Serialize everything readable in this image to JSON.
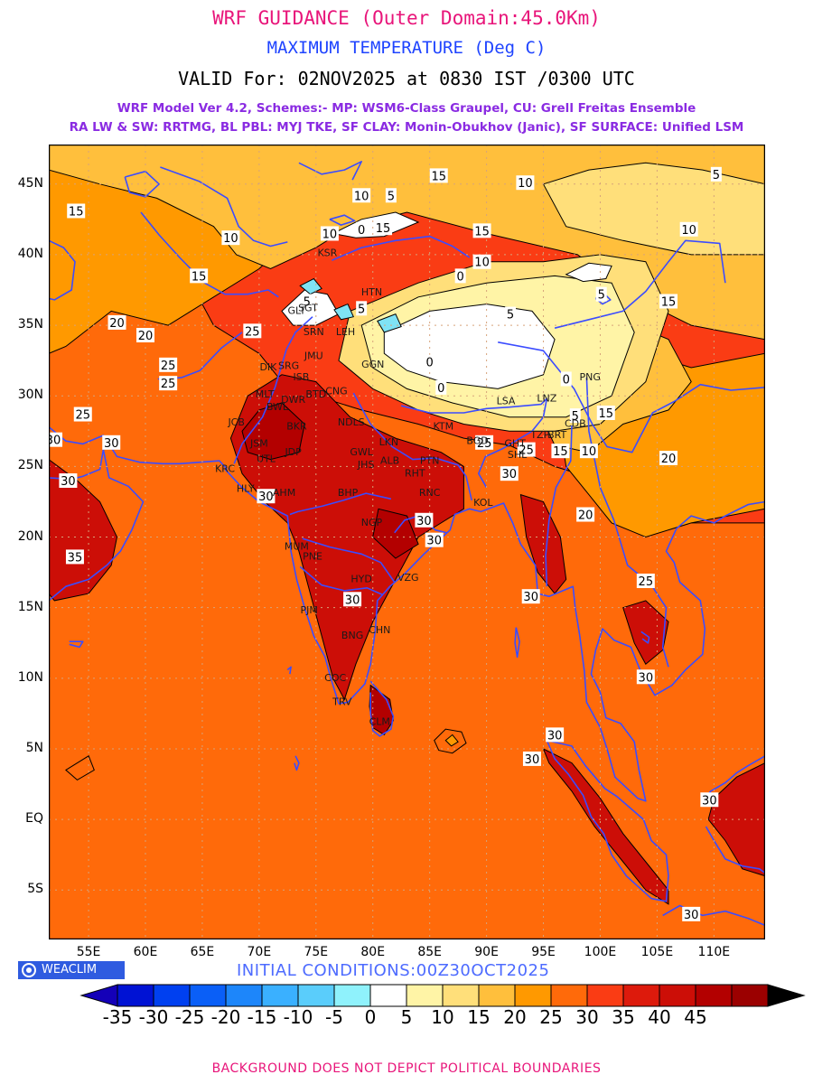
{
  "header": {
    "title": "WRF GUIDANCE (Outer Domain:45.0Km)",
    "parameter": "MAXIMUM TEMPERATURE (Deg C)",
    "valid": "VALID For: 02NOV2025 at 0830 IST /0300 UTC",
    "model_line1": "WRF Model Ver 4.2, Schemes:- MP: WSM6-Class Graupel, CU: Grell Freitas Ensemble",
    "model_line2": "RA LW & SW: RRTMG, BL PBL: MYJ TKE, SF CLAY: Monin-Obukhov (Janic), SF SURFACE: Unified LSM"
  },
  "map": {
    "lat_labels": [
      "45N",
      "40N",
      "35N",
      "30N",
      "25N",
      "20N",
      "15N",
      "10N",
      "5N",
      "EQ",
      "5S"
    ],
    "lon_labels": [
      "55E",
      "60E",
      "65E",
      "70E",
      "75E",
      "80E",
      "85E",
      "90E",
      "95E",
      "100E",
      "105E",
      "110E"
    ],
    "colors": {
      "ocean_base": "#fa3c14",
      "t25": "#ff6a0a",
      "t20": "#ff9900",
      "t15": "#ffbf3c",
      "t10": "#ffdf7a",
      "t5": "#fff4a6",
      "t0": "#ffffff",
      "tneg5": "#7fe3f5",
      "t35": "#cc0e07",
      "t40": "#b30000",
      "coast": "#3b4cff",
      "grid": "#d7a37a"
    },
    "contour_labels": [
      {
        "text": "15",
        "lon": 53.9,
        "lat": 43.1
      },
      {
        "text": "15",
        "lon": 85.8,
        "lat": 45.6
      },
      {
        "text": "10",
        "lon": 93.4,
        "lat": 45.1
      },
      {
        "text": "5",
        "lon": 110.2,
        "lat": 45.7
      },
      {
        "text": "10",
        "lon": 79.0,
        "lat": 44.2
      },
      {
        "text": "5",
        "lon": 81.6,
        "lat": 44.2
      },
      {
        "text": "10",
        "lon": 76.2,
        "lat": 41.5
      },
      {
        "text": "0",
        "lon": 79.0,
        "lat": 41.8
      },
      {
        "text": "15",
        "lon": 80.9,
        "lat": 41.9
      },
      {
        "text": "15",
        "lon": 89.6,
        "lat": 41.7
      },
      {
        "text": "10",
        "lon": 107.8,
        "lat": 41.8
      },
      {
        "text": "10",
        "lon": 67.5,
        "lat": 41.2
      },
      {
        "text": "10",
        "lon": 89.6,
        "lat": 39.5
      },
      {
        "text": "0",
        "lon": 87.7,
        "lat": 38.5
      },
      {
        "text": "15",
        "lon": 64.7,
        "lat": 38.5
      },
      {
        "text": "5",
        "lon": 100.1,
        "lat": 37.2
      },
      {
        "text": "15",
        "lon": 106.0,
        "lat": 36.7
      },
      {
        "text": "5",
        "lon": 74.2,
        "lat": 36.7
      },
      {
        "text": "5",
        "lon": 79.0,
        "lat": 36.2
      },
      {
        "text": "5",
        "lon": 92.1,
        "lat": 35.8
      },
      {
        "text": "20",
        "lon": 57.5,
        "lat": 35.2
      },
      {
        "text": "20",
        "lon": 60.0,
        "lat": 34.3
      },
      {
        "text": "25",
        "lon": 69.4,
        "lat": 34.6
      },
      {
        "text": "25",
        "lon": 62.0,
        "lat": 32.2
      },
      {
        "text": "25",
        "lon": 62.0,
        "lat": 30.9
      },
      {
        "text": "0",
        "lon": 85.0,
        "lat": 32.4
      },
      {
        "text": "0",
        "lon": 97.0,
        "lat": 31.2
      },
      {
        "text": "0",
        "lon": 86.0,
        "lat": 30.6
      },
      {
        "text": "25",
        "lon": 54.5,
        "lat": 28.7
      },
      {
        "text": "15",
        "lon": 100.5,
        "lat": 28.8
      },
      {
        "text": "5",
        "lon": 97.8,
        "lat": 28.6
      },
      {
        "text": "30",
        "lon": 51.9,
        "lat": 26.9
      },
      {
        "text": "30",
        "lon": 57.0,
        "lat": 26.7
      },
      {
        "text": "25",
        "lon": 89.8,
        "lat": 26.7
      },
      {
        "text": "25",
        "lon": 93.5,
        "lat": 26.2
      },
      {
        "text": "15",
        "lon": 96.5,
        "lat": 26.1
      },
      {
        "text": "10",
        "lon": 99.0,
        "lat": 26.1
      },
      {
        "text": "20",
        "lon": 106.0,
        "lat": 25.6
      },
      {
        "text": "30",
        "lon": 53.2,
        "lat": 24.0
      },
      {
        "text": "30",
        "lon": 92.0,
        "lat": 24.5
      },
      {
        "text": "30",
        "lon": 70.6,
        "lat": 22.9
      },
      {
        "text": "30",
        "lon": 84.5,
        "lat": 21.2
      },
      {
        "text": "20",
        "lon": 98.7,
        "lat": 21.6
      },
      {
        "text": "30",
        "lon": 85.4,
        "lat": 19.8
      },
      {
        "text": "35",
        "lon": 53.8,
        "lat": 18.6
      },
      {
        "text": "25",
        "lon": 104.0,
        "lat": 16.9
      },
      {
        "text": "30",
        "lon": 78.2,
        "lat": 15.6
      },
      {
        "text": "30",
        "lon": 93.9,
        "lat": 15.8
      },
      {
        "text": "30",
        "lon": 104.0,
        "lat": 10.1
      },
      {
        "text": "30",
        "lon": 96.0,
        "lat": 6.0
      },
      {
        "text": "30",
        "lon": 94.0,
        "lat": 4.3
      },
      {
        "text": "30",
        "lon": 109.6,
        "lat": 1.4
      },
      {
        "text": "30",
        "lon": 108.0,
        "lat": -6.7
      }
    ],
    "cities": [
      {
        "text": "KSR",
        "lon": 76.0,
        "lat": 39.9
      },
      {
        "text": "HTN",
        "lon": 79.9,
        "lat": 37.1
      },
      {
        "text": "SGT",
        "lon": 74.3,
        "lat": 36.0
      },
      {
        "text": "GLT",
        "lon": 73.3,
        "lat": 35.8
      },
      {
        "text": "SRN",
        "lon": 74.8,
        "lat": 34.3
      },
      {
        "text": "LEH",
        "lon": 77.6,
        "lat": 34.3
      },
      {
        "text": "JMU",
        "lon": 74.8,
        "lat": 32.6
      },
      {
        "text": "GGN",
        "lon": 80.0,
        "lat": 32.0
      },
      {
        "text": "DIK",
        "lon": 70.8,
        "lat": 31.8
      },
      {
        "text": "SRG",
        "lon": 72.6,
        "lat": 31.9
      },
      {
        "text": "ISB",
        "lon": 73.7,
        "lat": 31.1
      },
      {
        "text": "MLT",
        "lon": 70.5,
        "lat": 29.9
      },
      {
        "text": "BTD",
        "lon": 75.0,
        "lat": 29.9
      },
      {
        "text": "CNG",
        "lon": 76.8,
        "lat": 30.1
      },
      {
        "text": "DWR",
        "lon": 73.0,
        "lat": 29.5
      },
      {
        "text": "BWL",
        "lon": 71.6,
        "lat": 29.0
      },
      {
        "text": "NDLS",
        "lon": 78.1,
        "lat": 27.9
      },
      {
        "text": "JCB",
        "lon": 68.0,
        "lat": 27.9
      },
      {
        "text": "BKR",
        "lon": 73.3,
        "lat": 27.6
      },
      {
        "text": "JSM",
        "lon": 70.0,
        "lat": 26.4
      },
      {
        "text": "JDP",
        "lon": 73.0,
        "lat": 25.8
      },
      {
        "text": "UTL",
        "lon": 70.6,
        "lat": 25.3
      },
      {
        "text": "LKN",
        "lon": 81.4,
        "lat": 26.5
      },
      {
        "text": "GWL",
        "lon": 79.0,
        "lat": 25.8
      },
      {
        "text": "KTM",
        "lon": 86.2,
        "lat": 27.6
      },
      {
        "text": "LSA",
        "lon": 91.7,
        "lat": 29.4
      },
      {
        "text": "LNZ",
        "lon": 95.3,
        "lat": 29.6
      },
      {
        "text": "PNG",
        "lon": 99.1,
        "lat": 31.1
      },
      {
        "text": "CDB",
        "lon": 97.8,
        "lat": 27.8
      },
      {
        "text": "BRT",
        "lon": 96.2,
        "lat": 27.0
      },
      {
        "text": "TZP",
        "lon": 94.7,
        "lat": 27.0
      },
      {
        "text": "GHT",
        "lon": 92.5,
        "lat": 26.4
      },
      {
        "text": "SHL",
        "lon": 92.7,
        "lat": 25.6
      },
      {
        "text": "BGD",
        "lon": 89.2,
        "lat": 26.6
      },
      {
        "text": "PTN",
        "lon": 85.0,
        "lat": 25.2
      },
      {
        "text": "ALB",
        "lon": 81.5,
        "lat": 25.2
      },
      {
        "text": "JHS",
        "lon": 79.4,
        "lat": 24.9
      },
      {
        "text": "RHT",
        "lon": 83.7,
        "lat": 24.3
      },
      {
        "text": "KRC",
        "lon": 67.0,
        "lat": 24.6
      },
      {
        "text": "HLY",
        "lon": 68.8,
        "lat": 23.2
      },
      {
        "text": "AHM",
        "lon": 72.2,
        "lat": 22.9
      },
      {
        "text": "BHP",
        "lon": 77.8,
        "lat": 22.9
      },
      {
        "text": "RNC",
        "lon": 85.0,
        "lat": 22.9
      },
      {
        "text": "KOL",
        "lon": 89.7,
        "lat": 22.2
      },
      {
        "text": "NGP",
        "lon": 79.9,
        "lat": 20.8
      },
      {
        "text": "MUM",
        "lon": 73.3,
        "lat": 19.1
      },
      {
        "text": "PNE",
        "lon": 74.7,
        "lat": 18.4
      },
      {
        "text": "HYD",
        "lon": 79.0,
        "lat": 16.8
      },
      {
        "text": "VZG",
        "lon": 83.1,
        "lat": 16.9
      },
      {
        "text": "PJM",
        "lon": 74.4,
        "lat": 14.6
      },
      {
        "text": "BNG",
        "lon": 78.2,
        "lat": 12.8
      },
      {
        "text": "CHN",
        "lon": 80.6,
        "lat": 13.2
      },
      {
        "text": "COC",
        "lon": 76.7,
        "lat": 9.8
      },
      {
        "text": "TRV",
        "lon": 77.3,
        "lat": 8.1
      },
      {
        "text": "CLM",
        "lon": 80.6,
        "lat": 6.7
      }
    ]
  },
  "colorbar": {
    "labels": [
      "-35",
      "-30",
      "-25",
      "-20",
      "-15",
      "-10",
      "-5",
      "0",
      "5",
      "10",
      "15",
      "20",
      "25",
      "30",
      "35",
      "40",
      "45"
    ],
    "colors": [
      "#1400b8",
      "#0012d4",
      "#0040f0",
      "#0a5ff7",
      "#1d86fa",
      "#3ab0ff",
      "#5acdfb",
      "#8ff2fc",
      "#ffffff",
      "#fff4a6",
      "#ffdf7a",
      "#ffbf3c",
      "#ff9900",
      "#ff6a0a",
      "#fa3c14",
      "#dd1a0c",
      "#cc0e07",
      "#b30000",
      "#9b0000",
      "#000000"
    ]
  },
  "logo": "WEACLIM",
  "init_conditions": "INITIAL  CONDITIONS:00Z30OCT2025",
  "footer": "BACKGROUND DOES NOT DEPICT POLITICAL BOUNDARIES"
}
